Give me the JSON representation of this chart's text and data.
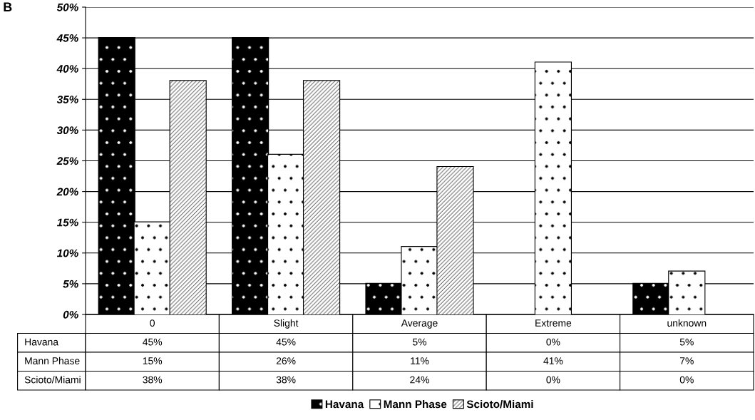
{
  "chart_data": {
    "type": "bar",
    "categories": [
      "0",
      "Slight",
      "Average",
      "Extreme",
      "unknown"
    ],
    "series": [
      {
        "name": "Havana",
        "color": "#000000",
        "values": [
          45,
          45,
          5,
          0,
          5
        ],
        "value_labels": [
          "45%",
          "45%",
          "5%",
          "0%",
          "5%"
        ]
      },
      {
        "name": "Mann Phase",
        "color": "#ffffff",
        "values": [
          15,
          26,
          11,
          41,
          7
        ],
        "value_labels": [
          "15%",
          "26%",
          "11%",
          "41%",
          "7%"
        ]
      },
      {
        "name": "Scioto/Miami",
        "color": "#ffffff",
        "values": [
          38,
          38,
          24,
          0,
          0
        ],
        "value_labels": [
          "38%",
          "38%",
          "24%",
          "0%",
          "0%"
        ]
      }
    ],
    "ylim": [
      0,
      50
    ],
    "yticks": [
      {
        "value": 0,
        "label": "0%"
      },
      {
        "value": 5,
        "label": "5%"
      },
      {
        "value": 10,
        "label": "10%"
      },
      {
        "value": 15,
        "label": "15%"
      },
      {
        "value": 20,
        "label": "20%"
      },
      {
        "value": 25,
        "label": "25%"
      },
      {
        "value": 30,
        "label": "30%"
      },
      {
        "value": 35,
        "label": "35%"
      },
      {
        "value": 40,
        "label": "40%"
      },
      {
        "value": 45,
        "label": "45%"
      },
      {
        "value": 50,
        "label": "50%"
      }
    ],
    "grid": "y",
    "legend": "bottom",
    "annotations": [
      "B"
    ]
  }
}
